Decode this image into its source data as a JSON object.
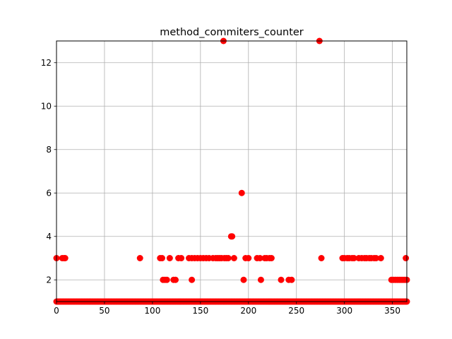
{
  "chart_data": {
    "type": "scatter",
    "title": "method_commiters_counter",
    "xlabel": "",
    "ylabel": "",
    "xlim": [
      0,
      365
    ],
    "ylim": [
      1,
      13
    ],
    "xticks": [
      0,
      50,
      100,
      150,
      200,
      250,
      300,
      350
    ],
    "yticks": [
      2,
      4,
      6,
      8,
      10,
      12
    ],
    "grid": true,
    "marker_color": "#ff0000",
    "baseline": {
      "y": 1,
      "x_start": 0,
      "x_end": 365,
      "x_step": 1
    },
    "points": [
      {
        "x": 0,
        "y": 3
      },
      {
        "x": 6,
        "y": 3
      },
      {
        "x": 8,
        "y": 3
      },
      {
        "x": 9,
        "y": 3
      },
      {
        "x": 87,
        "y": 3
      },
      {
        "x": 108,
        "y": 3
      },
      {
        "x": 110,
        "y": 3
      },
      {
        "x": 111,
        "y": 2
      },
      {
        "x": 113,
        "y": 2
      },
      {
        "x": 115,
        "y": 2
      },
      {
        "x": 118,
        "y": 3
      },
      {
        "x": 122,
        "y": 2
      },
      {
        "x": 124,
        "y": 2
      },
      {
        "x": 127,
        "y": 3
      },
      {
        "x": 130,
        "y": 3
      },
      {
        "x": 138,
        "y": 3
      },
      {
        "x": 141,
        "y": 2
      },
      {
        "x": 141,
        "y": 3
      },
      {
        "x": 144,
        "y": 3
      },
      {
        "x": 147,
        "y": 3
      },
      {
        "x": 150,
        "y": 3
      },
      {
        "x": 153,
        "y": 3
      },
      {
        "x": 156,
        "y": 3
      },
      {
        "x": 159,
        "y": 3
      },
      {
        "x": 163,
        "y": 3
      },
      {
        "x": 166,
        "y": 3
      },
      {
        "x": 168,
        "y": 3
      },
      {
        "x": 170,
        "y": 3
      },
      {
        "x": 172,
        "y": 3
      },
      {
        "x": 174,
        "y": 13
      },
      {
        "x": 175,
        "y": 3
      },
      {
        "x": 177,
        "y": 3
      },
      {
        "x": 179,
        "y": 3
      },
      {
        "x": 182,
        "y": 4
      },
      {
        "x": 183,
        "y": 4
      },
      {
        "x": 185,
        "y": 3
      },
      {
        "x": 193,
        "y": 6
      },
      {
        "x": 195,
        "y": 2
      },
      {
        "x": 197,
        "y": 3
      },
      {
        "x": 200,
        "y": 3
      },
      {
        "x": 209,
        "y": 3
      },
      {
        "x": 212,
        "y": 3
      },
      {
        "x": 213,
        "y": 2
      },
      {
        "x": 217,
        "y": 3
      },
      {
        "x": 219,
        "y": 3
      },
      {
        "x": 222,
        "y": 3
      },
      {
        "x": 224,
        "y": 3
      },
      {
        "x": 234,
        "y": 2
      },
      {
        "x": 242,
        "y": 2
      },
      {
        "x": 245,
        "y": 2
      },
      {
        "x": 274,
        "y": 13
      },
      {
        "x": 276,
        "y": 3
      },
      {
        "x": 298,
        "y": 3
      },
      {
        "x": 300,
        "y": 3
      },
      {
        "x": 303,
        "y": 3
      },
      {
        "x": 305,
        "y": 3
      },
      {
        "x": 308,
        "y": 3
      },
      {
        "x": 310,
        "y": 3
      },
      {
        "x": 315,
        "y": 3
      },
      {
        "x": 318,
        "y": 3
      },
      {
        "x": 321,
        "y": 3
      },
      {
        "x": 323,
        "y": 3
      },
      {
        "x": 326,
        "y": 3
      },
      {
        "x": 328,
        "y": 3
      },
      {
        "x": 331,
        "y": 3
      },
      {
        "x": 333,
        "y": 3
      },
      {
        "x": 338,
        "y": 3
      },
      {
        "x": 349,
        "y": 2
      },
      {
        "x": 351,
        "y": 2
      },
      {
        "x": 353,
        "y": 2
      },
      {
        "x": 355,
        "y": 2
      },
      {
        "x": 357,
        "y": 2
      },
      {
        "x": 359,
        "y": 2
      },
      {
        "x": 361,
        "y": 2
      },
      {
        "x": 363,
        "y": 2
      },
      {
        "x": 364,
        "y": 3
      },
      {
        "x": 365,
        "y": 2
      }
    ]
  }
}
